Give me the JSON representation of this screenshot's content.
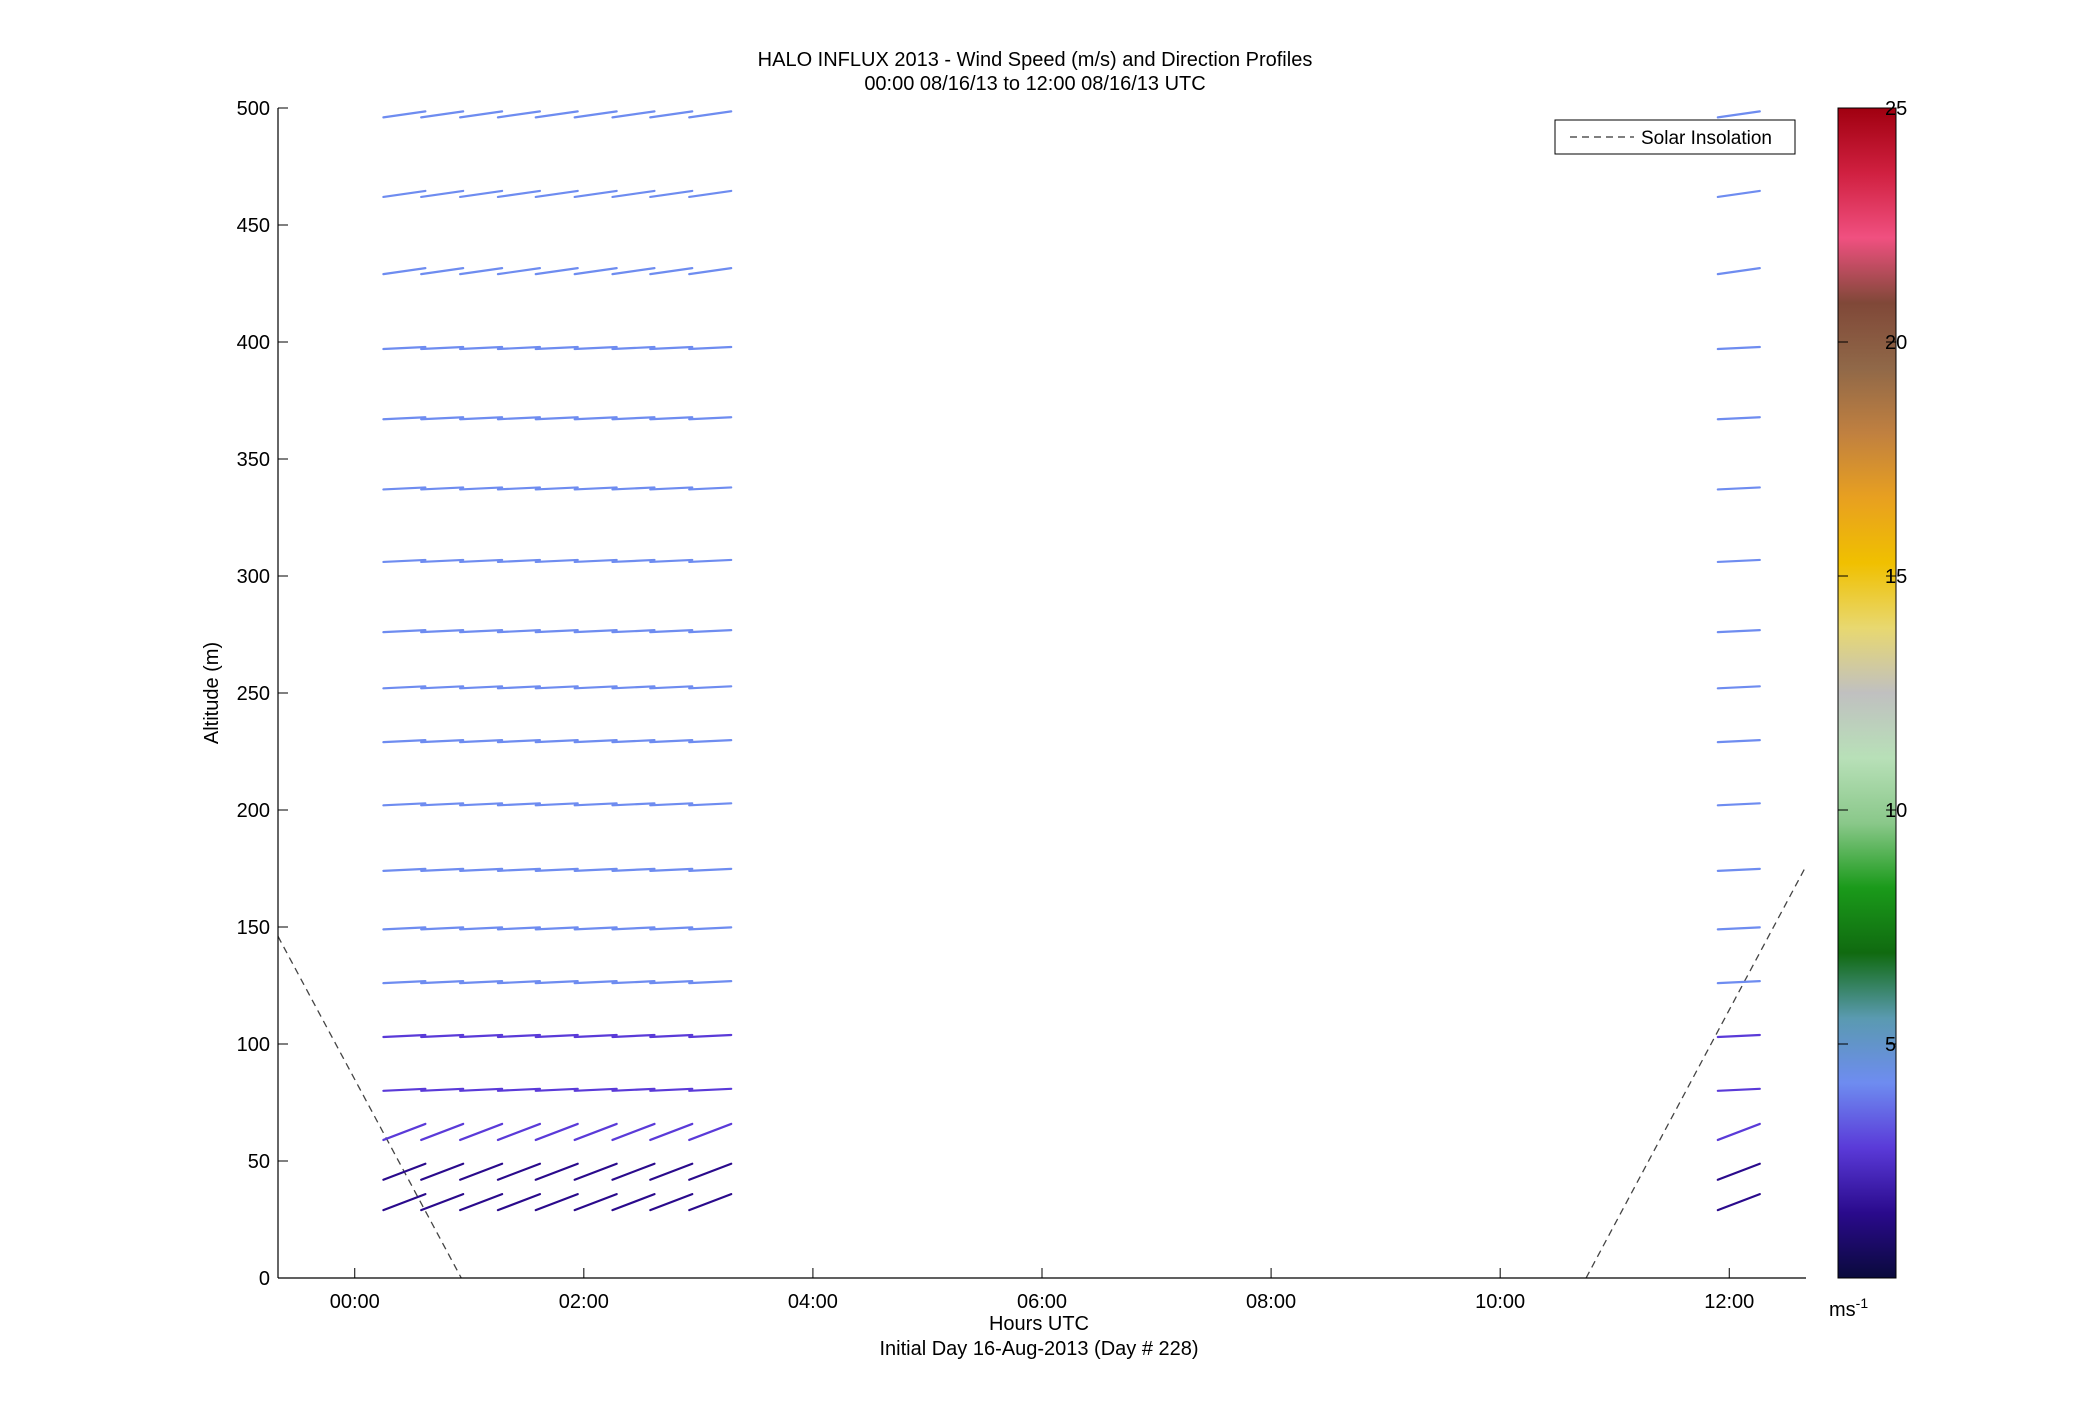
{
  "chart_data": {
    "type": "scatter",
    "title": "HALO INFLUX 2013 - Wind Speed (m/s) and Direction Profiles",
    "subtitle": "00:00 08/16/13 to 12:00 08/16/13  UTC",
    "xlabel": "Hours UTC",
    "ylabel": "Altitude (m)",
    "note": "Initial Day 16-Aug-2013 (Day # 228)",
    "xlim": [
      -0.67,
      12.67
    ],
    "ylim": [
      0,
      500
    ],
    "x_ticks": [
      0,
      2,
      4,
      6,
      8,
      10,
      12
    ],
    "x_tick_labels": [
      "00:00",
      "02:00",
      "04:00",
      "06:00",
      "08:00",
      "10:00",
      "12:00"
    ],
    "y_ticks": [
      0,
      50,
      100,
      150,
      200,
      250,
      300,
      350,
      400,
      450,
      500
    ],
    "y_tick_labels": [
      "0",
      "50",
      "100",
      "150",
      "200",
      "250",
      "300",
      "350",
      "400",
      "450",
      "500"
    ],
    "legend": {
      "entries": [
        "Solar Insolation"
      ],
      "position": "top-right"
    },
    "colorbar": {
      "range": [
        0,
        25
      ],
      "ticks": [
        5,
        10,
        15,
        20,
        25
      ],
      "tick_labels": [
        "5",
        "10",
        "15",
        "20",
        "25"
      ],
      "unit_label": "ms",
      "unit_exponent": "-1",
      "colors": [
        "#0a0a3c",
        "#2a0a8c",
        "#5a3ad8",
        "#6e8cf0",
        "#5a9ab0",
        "#106a10",
        "#1a9a1a",
        "#8ac88a",
        "#b8e0b8",
        "#c0c0c0",
        "#e8d870",
        "#f0c000",
        "#e8a020",
        "#c08040",
        "#906848",
        "#804838",
        "#f05080",
        "#d02040",
        "#a00010"
      ]
    },
    "wind_profiles": {
      "heights": [
        29,
        42,
        59,
        80,
        103,
        126,
        149,
        174,
        202,
        229,
        252,
        276,
        306,
        337,
        367,
        397,
        429,
        462,
        496
      ],
      "times_block1": [
        0.25,
        0.58,
        0.92,
        1.25,
        1.58,
        1.92,
        2.25,
        2.58,
        2.92
      ],
      "times_block2": [
        11.9
      ],
      "speed_ms": {
        "29": 1.2,
        "42": 1.8,
        "59": 2.5,
        "80": 3.0,
        "103": 3.4,
        "126": 4.0,
        "149": 4.2,
        "174": 4.5,
        "202": 4.5,
        "229": 4.6,
        "252": 4.0,
        "276": 4.4,
        "306": 4.5,
        "337": 4.6,
        "367": 4.6,
        "397": 4.4,
        "429": 4.5,
        "462": 4.6,
        "496": 4.7
      }
    },
    "solar_insolation": {
      "style": "dashed",
      "morning": [
        [
          -0.67,
          146
        ],
        [
          0.93,
          0
        ]
      ],
      "evening": [
        [
          10.75,
          0
        ],
        [
          12.67,
          176
        ]
      ]
    }
  }
}
